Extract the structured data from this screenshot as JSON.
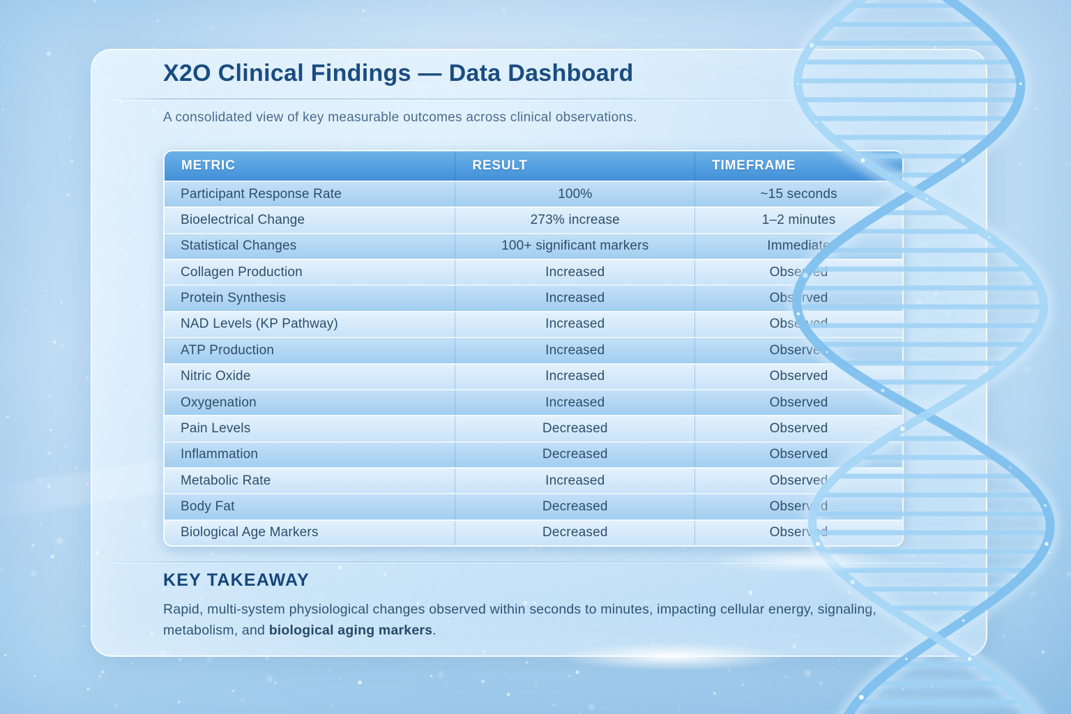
{
  "page": {
    "title": "X2O Clinical Findings — Data Dashboard",
    "subtitle": "A consolidated view of key measurable outcomes across clinical observations."
  },
  "chart_data": {
    "type": "table",
    "title": "X2O Clinical Findings — Data Dashboard",
    "columns": [
      "METRIC",
      "RESULT",
      "TIMEFRAME"
    ],
    "rows": [
      [
        "Participant Response Rate",
        "100%",
        "~15 seconds"
      ],
      [
        "Bioelectrical Change",
        "273% increase",
        "1–2 minutes"
      ],
      [
        "Statistical Changes",
        "100+ significant markers",
        "Immediate"
      ],
      [
        "Collagen Production",
        "Increased",
        "Observed"
      ],
      [
        "Protein Synthesis",
        "Increased",
        "Observed"
      ],
      [
        "NAD Levels (KP Pathway)",
        "Increased",
        "Observed"
      ],
      [
        "ATP Production",
        "Increased",
        "Observed"
      ],
      [
        "Nitric Oxide",
        "Increased",
        "Observed"
      ],
      [
        "Oxygenation",
        "Increased",
        "Observed"
      ],
      [
        "Pain Levels",
        "Decreased",
        "Observed"
      ],
      [
        "Inflammation",
        "Decreased",
        "Observed"
      ],
      [
        "Metabolic Rate",
        "Increased",
        "Observed"
      ],
      [
        "Body Fat",
        "Decreased",
        "Observed"
      ],
      [
        "Biological Age Markers",
        "Decreased",
        "Observed"
      ]
    ]
  },
  "takeaway": {
    "heading": "KEY TAKEAWAY",
    "text_before": "Rapid, multi-system physiological changes observed within seconds to minutes, impacting cellular energy, signaling, metabolism, and ",
    "text_emphasis": "biological aging markers",
    "text_after": "."
  },
  "colors": {
    "title_navy": "#1a4c80",
    "subtitle_slate": "#4a6c8c",
    "header_blue": "#56a1e0",
    "header_blue_dark": "#4390d8",
    "row_dark_bottom": "#a2ceef",
    "row_light_top": "#e4f1fc",
    "cell_text": "#2d4e6b",
    "takeaway_navy": "#16477a",
    "paragraph_slate": "#2d5473",
    "dna_blue": "#7fc0ee"
  }
}
